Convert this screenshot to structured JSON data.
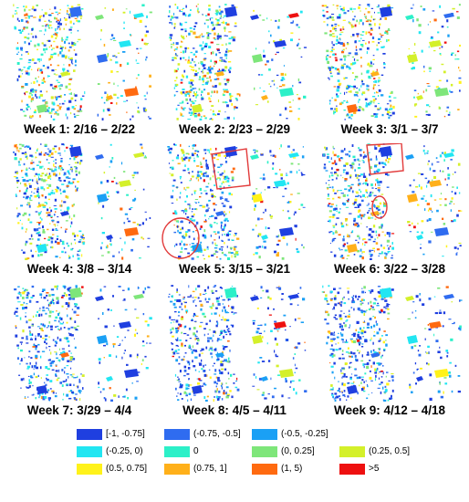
{
  "panels": [
    {
      "caption": "Week 1: 2/16 – 2/22",
      "intensity": 0.15
    },
    {
      "caption": "Week 2: 2/23 – 2/29",
      "intensity": 0.2
    },
    {
      "caption": "Week 3: 3/1 – 3/7",
      "intensity": 0.25
    },
    {
      "caption": "Week 4: 3/8 – 3/14",
      "intensity": 0.4
    },
    {
      "caption": "Week 5: 3/15 – 3/21",
      "intensity": 0.6
    },
    {
      "caption": "Week 6: 3/22 – 3/28",
      "intensity": 0.65
    },
    {
      "caption": "Week 7: 3/29 – 4/4",
      "intensity": 0.85
    },
    {
      "caption": "Week 8: 4/5 – 4/11",
      "intensity": 0.9
    },
    {
      "caption": "Week 9: 4/12 – 4/18",
      "intensity": 0.9
    }
  ],
  "legend": [
    {
      "label": "[-1, -0.75]",
      "color": "#1f3fe0"
    },
    {
      "label": "(-0.75, -0.5]",
      "color": "#2f6cf0"
    },
    {
      "label": "(-0.5, -0.25]",
      "color": "#1aa0f5"
    },
    {
      "label": "(-0.25, 0)",
      "color": "#22e6f2"
    },
    {
      "label": "0",
      "color": "#2cf0c8"
    },
    {
      "label": "(0, 0.25]",
      "color": "#7ee67a"
    },
    {
      "label": "(0.25, 0.5]",
      "color": "#d4f02a"
    },
    {
      "label": "(0.5, 0.75]",
      "color": "#fff21a"
    },
    {
      "label": "(0.75, 1]",
      "color": "#ffb01a"
    },
    {
      "label": "(1, 5)",
      "color": "#ff6a10"
    },
    {
      "label": ">5",
      "color": "#ee1010"
    }
  ]
}
